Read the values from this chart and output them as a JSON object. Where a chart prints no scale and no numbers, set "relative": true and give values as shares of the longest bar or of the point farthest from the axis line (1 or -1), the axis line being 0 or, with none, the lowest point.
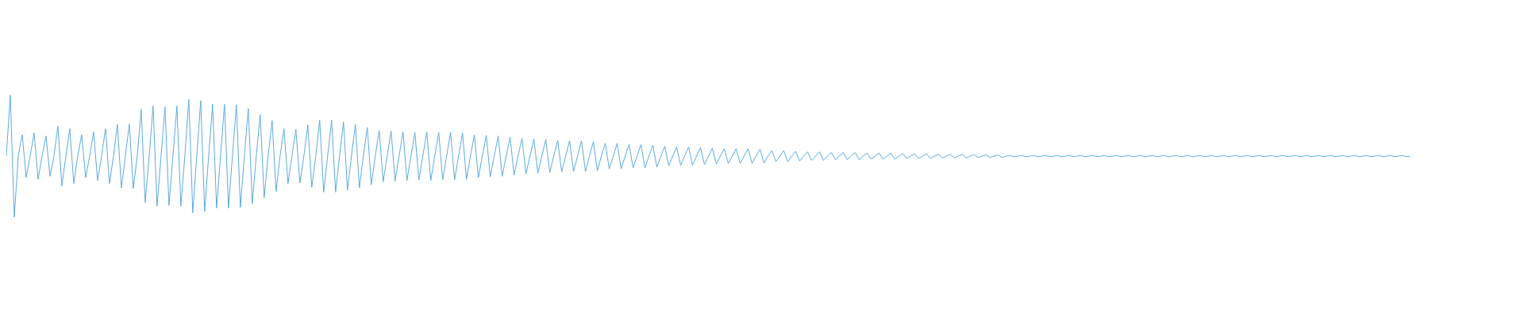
{
  "chart_data": {
    "type": "line",
    "relative": true,
    "color": "#5daae0",
    "legend": false,
    "categories": [
      null,
      null,
      null,
      null,
      null,
      null,
      null,
      null,
      null,
      null,
      null,
      null,
      null,
      null,
      null,
      null,
      null,
      null,
      null,
      null,
      null,
      null,
      null,
      null,
      null,
      null,
      null,
      null,
      null,
      null,
      null,
      null,
      null,
      null,
      null,
      null,
      null,
      null,
      null,
      null,
      null,
      null,
      null,
      null,
      null,
      null,
      null,
      null,
      null,
      null,
      null,
      null,
      null,
      null,
      null,
      null,
      null,
      null,
      null,
      null,
      null,
      null,
      null,
      null,
      null,
      null,
      null,
      null,
      null,
      null,
      null,
      null,
      null,
      null,
      null,
      null,
      null,
      null,
      null,
      null,
      null,
      null,
      null,
      null,
      null,
      null,
      null,
      null,
      null,
      null,
      null,
      null,
      null,
      null,
      null,
      null,
      null,
      null,
      null,
      null,
      null,
      null,
      null,
      null,
      null,
      null,
      null,
      null,
      null,
      null,
      null,
      null,
      null,
      null,
      null,
      null,
      null,
      null,
      null,
      null,
      null,
      null,
      null,
      null,
      null,
      null,
      null,
      null,
      null,
      null,
      null,
      null,
      null,
      null,
      null,
      null,
      null,
      null,
      null,
      null,
      null,
      null,
      null,
      null,
      null,
      null,
      null,
      null,
      null,
      null,
      null,
      null,
      null,
      null,
      null,
      null,
      null,
      null,
      null,
      null,
      null,
      null,
      null,
      null,
      null,
      null,
      null,
      null,
      null,
      null,
      null,
      null,
      null,
      null,
      null,
      null,
      null,
      null,
      null,
      null,
      null,
      null,
      null,
      null,
      null,
      null,
      null,
      null,
      null,
      null,
      null,
      null,
      null,
      null,
      null,
      null,
      null,
      null,
      null,
      null,
      null,
      null,
      null,
      null,
      null,
      null,
      null,
      null,
      null,
      null,
      null,
      null,
      null,
      null,
      null,
      null,
      null,
      null,
      null,
      null,
      null,
      null,
      null,
      null,
      null,
      null,
      null,
      null,
      null,
      null,
      null,
      null,
      null,
      null,
      null,
      null,
      null,
      null,
      null,
      null,
      null,
      null,
      null,
      null,
      null,
      null,
      null,
      null,
      null,
      null,
      null,
      null,
      null,
      null,
      null,
      null,
      null,
      null,
      null,
      null,
      null,
      null,
      null,
      null,
      null,
      null,
      null,
      null,
      null,
      null,
      null,
      null,
      null,
      null,
      null,
      null,
      null,
      null,
      null,
      null,
      null,
      null,
      null,
      null,
      null,
      null,
      null,
      null,
      null,
      null,
      null,
      null,
      null,
      null,
      null,
      null,
      null,
      null,
      null,
      null,
      null,
      null,
      null,
      null,
      null,
      null,
      null,
      null,
      null,
      null,
      null,
      null,
      null,
      null,
      null,
      null,
      null,
      null,
      null,
      null,
      null,
      null,
      null,
      null,
      null,
      null,
      null,
      null,
      null,
      null,
      null,
      null,
      null,
      null,
      null,
      null,
      null,
      null,
      null,
      null,
      null,
      null,
      null,
      null,
      null,
      null,
      null,
      null,
      null,
      null,
      null,
      null,
      null,
      null,
      null
    ],
    "values": [
      0.5,
      1,
      0,
      0.5,
      0.675,
      0.325,
      0.5,
      0.69,
      0.31,
      0.5,
      0.665,
      0.335,
      0.5,
      0.745,
      0.255,
      0.5,
      0.725,
      0.275,
      0.5,
      0.675,
      0.325,
      0.5,
      0.7,
      0.3,
      0.5,
      0.725,
      0.275,
      0.5,
      0.76,
      0.24,
      0.5,
      0.765,
      0.235,
      0.5,
      0.88,
      0.12,
      0.5,
      0.91,
      0.09,
      0.5,
      0.905,
      0.095,
      0.5,
      0.91,
      0.09,
      0.5,
      0.965,
      0.035,
      0.5,
      0.955,
      0.045,
      0.5,
      0.925,
      0.075,
      0.5,
      0.925,
      0.075,
      0.5,
      0.92,
      0.08,
      0.5,
      0.89,
      0.11,
      0.5,
      0.84,
      0.16,
      0.5,
      0.79,
      0.21,
      0.5,
      0.725,
      0.275,
      0.5,
      0.72,
      0.28,
      0.5,
      0.755,
      0.245,
      0.5,
      0.795,
      0.205,
      0.5,
      0.795,
      0.205,
      0.5,
      0.78,
      0.22,
      0.5,
      0.76,
      0.24,
      0.5,
      0.735,
      0.265,
      0.5,
      0.71,
      0.29,
      0.5,
      0.705,
      0.295,
      0.5,
      0.7,
      0.3,
      0.5,
      0.695,
      0.305,
      0.5,
      0.7,
      0.3,
      0.5,
      0.695,
      0.305,
      0.5,
      0.695,
      0.305,
      0.5,
      0.69,
      0.31,
      0.5,
      0.675,
      0.325,
      0.5,
      0.67,
      0.33,
      0.5,
      0.665,
      0.335,
      0.5,
      0.655,
      0.345,
      0.5,
      0.645,
      0.355,
      0.5,
      0.64,
      0.36,
      0.5,
      0.635,
      0.365,
      0.5,
      0.63,
      0.37,
      0.5,
      0.625,
      0.375,
      0.5,
      0.625,
      0.375,
      0.5,
      0.62,
      0.38,
      0.5,
      0.605,
      0.395,
      0.5,
      0.605,
      0.395,
      0.5,
      0.595,
      0.405,
      0.5,
      0.595,
      0.405,
      0.5,
      0.59,
      0.41,
      0.5,
      0.58,
      0.42,
      0.5,
      0.575,
      0.425,
      0.5,
      0.575,
      0.425,
      0.5,
      0.57,
      0.43,
      0.5,
      0.565,
      0.435,
      0.5,
      0.56,
      0.44,
      0.5,
      0.56,
      0.44,
      0.5,
      0.56,
      0.44,
      0.5,
      0.555,
      0.445,
      0.5,
      0.545,
      0.455,
      0.5,
      0.545,
      0.455,
      0.5,
      0.54,
      0.46,
      0.5,
      0.535,
      0.465,
      0.5,
      0.535,
      0.465,
      0.5,
      0.53,
      0.47,
      0.5,
      0.53,
      0.47,
      0.5,
      0.53,
      0.47,
      0.5,
      0.525,
      0.475,
      0.5,
      0.525,
      0.475,
      0.5,
      0.525,
      0.475,
      0.5,
      0.52,
      0.48,
      0.5,
      0.52,
      0.48,
      0.5,
      0.52,
      0.48,
      0.5,
      0.515,
      0.485,
      0.5,
      0.515,
      0.485,
      0.5,
      0.515,
      0.485,
      0.5,
      0.51,
      0.49,
      0.5,
      0.51,
      0.49,
      0.5,
      0.51,
      0.49,
      0.5,
      0.505,
      0.495,
      0.5,
      0.505,
      0.495,
      0.5,
      0.505,
      0.495,
      0.5,
      0.505,
      0.495,
      0.5,
      0.505,
      0.495,
      0.5,
      0.505,
      0.495,
      0.5,
      0.505,
      0.495,
      0.5,
      0.505,
      0.495,
      0.5,
      0.505,
      0.495,
      0.5,
      0.505,
      0.495,
      0.5,
      0.505,
      0.495,
      0.5,
      0.505,
      0.495,
      0.5,
      0.505,
      0.495,
      0.5,
      0.505,
      0.495,
      0.5,
      0.505,
      0.495,
      0.5,
      0.505,
      0.495,
      0.5,
      0.505,
      0.495,
      0.5,
      0.505,
      0.495,
      0.5,
      0.505,
      0.495,
      0.5,
      0.505,
      0.495,
      0.5,
      0.505,
      0.495,
      0.5,
      0.505,
      0.495,
      0.5,
      0.505,
      0.495,
      0.5,
      0.505,
      0.495,
      0.5,
      0.505,
      0.495,
      0.5,
      0.505,
      0.495,
      0.5,
      0.505,
      0.495,
      0.5,
      0.505,
      0.495,
      0.5,
      0.505,
      0.495,
      0.5,
      0.505,
      0.495,
      0.5,
      0.505,
      0.495,
      0.5,
      0.505,
      0.495,
      0.5,
      0.505,
      0.495,
      0.5,
      0.505,
      0.495,
      0.5
    ]
  }
}
